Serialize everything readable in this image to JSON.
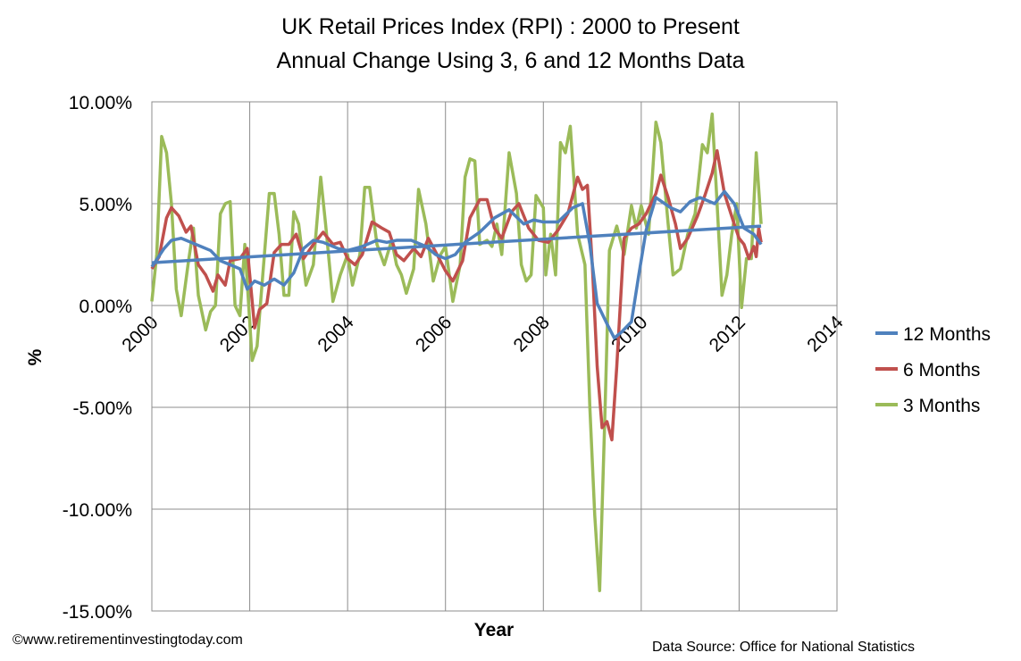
{
  "chart_data": {
    "type": "line",
    "title": "UK Retail Prices Index (RPI) : 2000 to Present",
    "subtitle": "Annual Change Using 3, 6 and 12 Months Data",
    "xlabel": "Year",
    "ylabel": "%",
    "xlim": [
      2000,
      2014
    ],
    "ylim": [
      -15,
      10
    ],
    "x_ticks": [
      "2000",
      "2002",
      "2004",
      "2006",
      "2008",
      "2010",
      "2012",
      "2014"
    ],
    "y_ticks": [
      "10.00%",
      "5.00%",
      "0.00%",
      "-5.00%",
      "-10.00%",
      "-15.00%"
    ],
    "grid": true,
    "legend_position": "right",
    "series": [
      {
        "name": "12 Months",
        "color": "#4F81BD",
        "points": [
          [
            2000,
            1.9
          ],
          [
            2000.25,
            2.8
          ],
          [
            2000.4,
            3.2
          ],
          [
            2000.6,
            3.3
          ],
          [
            2000.8,
            3.1
          ],
          [
            2001,
            2.9
          ],
          [
            2001.2,
            2.7
          ],
          [
            2001.4,
            2.2
          ],
          [
            2001.6,
            2.0
          ],
          [
            2001.8,
            1.8
          ],
          [
            2001.95,
            0.8
          ],
          [
            2002.1,
            1.2
          ],
          [
            2002.3,
            1.0
          ],
          [
            2002.5,
            1.3
          ],
          [
            2002.7,
            1.0
          ],
          [
            2002.9,
            1.6
          ],
          [
            2003.1,
            2.8
          ],
          [
            2003.3,
            3.2
          ],
          [
            2003.5,
            3.1
          ],
          [
            2003.8,
            2.8
          ],
          [
            2004,
            2.7
          ],
          [
            2004.3,
            2.9
          ],
          [
            2004.6,
            3.2
          ],
          [
            2004.8,
            3.1
          ],
          [
            2005,
            3.2
          ],
          [
            2005.3,
            3.2
          ],
          [
            2005.6,
            2.9
          ],
          [
            2005.8,
            2.5
          ],
          [
            2006,
            2.3
          ],
          [
            2006.2,
            2.5
          ],
          [
            2006.4,
            3.1
          ],
          [
            2006.7,
            3.6
          ],
          [
            2007,
            4.3
          ],
          [
            2007.3,
            4.7
          ],
          [
            2007.6,
            4.0
          ],
          [
            2007.8,
            4.2
          ],
          [
            2008,
            4.1
          ],
          [
            2008.3,
            4.1
          ],
          [
            2008.6,
            4.8
          ],
          [
            2008.8,
            5.0
          ],
          [
            2008.95,
            3.0
          ],
          [
            2009.1,
            0.1
          ],
          [
            2009.3,
            -0.9
          ],
          [
            2009.45,
            -1.6
          ],
          [
            2009.6,
            -1.3
          ],
          [
            2009.8,
            -0.8
          ],
          [
            2009.95,
            1.5
          ],
          [
            2010.1,
            3.7
          ],
          [
            2010.3,
            5.3
          ],
          [
            2010.6,
            4.8
          ],
          [
            2010.8,
            4.6
          ],
          [
            2011,
            5.1
          ],
          [
            2011.2,
            5.3
          ],
          [
            2011.5,
            5.0
          ],
          [
            2011.7,
            5.6
          ],
          [
            2011.9,
            5.0
          ],
          [
            2012.1,
            3.8
          ],
          [
            2012.3,
            3.5
          ],
          [
            2012.45,
            3.0
          ]
        ]
      },
      {
        "name": "6 Months",
        "color": "#C0504D",
        "points": [
          [
            2000,
            1.8
          ],
          [
            2000.15,
            2.4
          ],
          [
            2000.3,
            4.3
          ],
          [
            2000.4,
            4.8
          ],
          [
            2000.55,
            4.4
          ],
          [
            2000.7,
            3.6
          ],
          [
            2000.8,
            3.9
          ],
          [
            2000.95,
            2.0
          ],
          [
            2001.1,
            1.5
          ],
          [
            2001.25,
            0.7
          ],
          [
            2001.35,
            1.5
          ],
          [
            2001.5,
            1.0
          ],
          [
            2001.6,
            2.2
          ],
          [
            2001.8,
            2.3
          ],
          [
            2001.95,
            2.8
          ],
          [
            2002.1,
            -1.1
          ],
          [
            2002.2,
            -0.2
          ],
          [
            2002.35,
            0.1
          ],
          [
            2002.5,
            2.6
          ],
          [
            2002.65,
            3.0
          ],
          [
            2002.8,
            3.0
          ],
          [
            2002.95,
            3.5
          ],
          [
            2003.1,
            2.3
          ],
          [
            2003.3,
            3.0
          ],
          [
            2003.5,
            3.6
          ],
          [
            2003.7,
            3.0
          ],
          [
            2003.85,
            3.1
          ],
          [
            2004,
            2.3
          ],
          [
            2004.15,
            2.0
          ],
          [
            2004.3,
            2.5
          ],
          [
            2004.5,
            4.1
          ],
          [
            2004.7,
            3.8
          ],
          [
            2004.85,
            3.6
          ],
          [
            2005,
            2.5
          ],
          [
            2005.15,
            2.2
          ],
          [
            2005.35,
            2.8
          ],
          [
            2005.5,
            2.4
          ],
          [
            2005.65,
            3.3
          ],
          [
            2005.85,
            2.4
          ],
          [
            2006,
            1.7
          ],
          [
            2006.15,
            1.2
          ],
          [
            2006.35,
            2.2
          ],
          [
            2006.5,
            4.3
          ],
          [
            2006.7,
            5.2
          ],
          [
            2006.85,
            5.2
          ],
          [
            2007,
            3.8
          ],
          [
            2007.15,
            3.3
          ],
          [
            2007.35,
            4.6
          ],
          [
            2007.5,
            5.0
          ],
          [
            2007.7,
            3.8
          ],
          [
            2007.9,
            3.2
          ],
          [
            2008.1,
            3.1
          ],
          [
            2008.3,
            3.7
          ],
          [
            2008.5,
            4.5
          ],
          [
            2008.7,
            6.3
          ],
          [
            2008.8,
            5.7
          ],
          [
            2008.9,
            5.9
          ],
          [
            2009,
            2.0
          ],
          [
            2009.1,
            -3.0
          ],
          [
            2009.2,
            -6.0
          ],
          [
            2009.3,
            -5.7
          ],
          [
            2009.4,
            -6.6
          ],
          [
            2009.5,
            -3.0
          ],
          [
            2009.65,
            3.3
          ],
          [
            2009.8,
            3.8
          ],
          [
            2009.95,
            4.0
          ],
          [
            2010.1,
            4.5
          ],
          [
            2010.3,
            5.5
          ],
          [
            2010.4,
            6.4
          ],
          [
            2010.55,
            5.3
          ],
          [
            2010.7,
            4.0
          ],
          [
            2010.8,
            2.8
          ],
          [
            2010.95,
            3.3
          ],
          [
            2011.15,
            4.4
          ],
          [
            2011.3,
            5.4
          ],
          [
            2011.45,
            6.5
          ],
          [
            2011.55,
            7.6
          ],
          [
            2011.7,
            5.5
          ],
          [
            2011.9,
            4.0
          ],
          [
            2012,
            3.3
          ],
          [
            2012.1,
            3.0
          ],
          [
            2012.2,
            2.3
          ],
          [
            2012.3,
            2.9
          ],
          [
            2012.35,
            2.4
          ],
          [
            2012.4,
            3.8
          ],
          [
            2012.45,
            3.1
          ]
        ]
      },
      {
        "name": "3 Months",
        "color": "#9BBB59",
        "points": [
          [
            2000,
            0.2
          ],
          [
            2000.1,
            2.5
          ],
          [
            2000.2,
            8.3
          ],
          [
            2000.3,
            7.5
          ],
          [
            2000.4,
            5.0
          ],
          [
            2000.5,
            0.8
          ],
          [
            2000.6,
            -0.5
          ],
          [
            2000.75,
            2.2
          ],
          [
            2000.85,
            3.8
          ],
          [
            2000.95,
            0.5
          ],
          [
            2001.1,
            -1.2
          ],
          [
            2001.2,
            -0.3
          ],
          [
            2001.3,
            0.0
          ],
          [
            2001.4,
            4.5
          ],
          [
            2001.5,
            5.0
          ],
          [
            2001.6,
            5.1
          ],
          [
            2001.7,
            0.0
          ],
          [
            2001.8,
            -0.5
          ],
          [
            2001.9,
            3.0
          ],
          [
            2002.05,
            -2.7
          ],
          [
            2002.15,
            -2.0
          ],
          [
            2002.3,
            2.5
          ],
          [
            2002.4,
            5.5
          ],
          [
            2002.5,
            5.5
          ],
          [
            2002.6,
            3.5
          ],
          [
            2002.7,
            0.5
          ],
          [
            2002.8,
            0.5
          ],
          [
            2002.9,
            4.6
          ],
          [
            2003,
            4.0
          ],
          [
            2003.15,
            1.0
          ],
          [
            2003.3,
            2.0
          ],
          [
            2003.45,
            6.3
          ],
          [
            2003.55,
            4.0
          ],
          [
            2003.7,
            0.2
          ],
          [
            2003.85,
            1.5
          ],
          [
            2004,
            2.5
          ],
          [
            2004.1,
            1.0
          ],
          [
            2004.25,
            2.5
          ],
          [
            2004.35,
            5.8
          ],
          [
            2004.45,
            5.8
          ],
          [
            2004.6,
            3.0
          ],
          [
            2004.75,
            2.0
          ],
          [
            2004.9,
            3.2
          ],
          [
            2005,
            2.0
          ],
          [
            2005.1,
            1.5
          ],
          [
            2005.2,
            0.6
          ],
          [
            2005.35,
            1.8
          ],
          [
            2005.45,
            5.7
          ],
          [
            2005.6,
            4.0
          ],
          [
            2005.75,
            1.2
          ],
          [
            2005.9,
            2.5
          ],
          [
            2006,
            2.9
          ],
          [
            2006.15,
            0.2
          ],
          [
            2006.3,
            2.0
          ],
          [
            2006.4,
            6.3
          ],
          [
            2006.5,
            7.2
          ],
          [
            2006.6,
            7.1
          ],
          [
            2006.7,
            3.0
          ],
          [
            2006.85,
            3.2
          ],
          [
            2006.95,
            2.9
          ],
          [
            2007.05,
            4.0
          ],
          [
            2007.15,
            2.5
          ],
          [
            2007.3,
            7.5
          ],
          [
            2007.45,
            5.5
          ],
          [
            2007.55,
            2.0
          ],
          [
            2007.65,
            1.2
          ],
          [
            2007.75,
            1.5
          ],
          [
            2007.85,
            5.4
          ],
          [
            2008,
            4.8
          ],
          [
            2008.05,
            1.5
          ],
          [
            2008.15,
            3.5
          ],
          [
            2008.25,
            1.5
          ],
          [
            2008.35,
            8.0
          ],
          [
            2008.45,
            7.5
          ],
          [
            2008.55,
            8.8
          ],
          [
            2008.7,
            3.5
          ],
          [
            2008.85,
            2.0
          ],
          [
            2008.95,
            -5.0
          ],
          [
            2009.05,
            -10.3
          ],
          [
            2009.15,
            -14.0
          ],
          [
            2009.25,
            -6.0
          ],
          [
            2009.35,
            2.7
          ],
          [
            2009.5,
            3.9
          ],
          [
            2009.65,
            2.5
          ],
          [
            2009.8,
            4.9
          ],
          [
            2009.9,
            3.8
          ],
          [
            2010,
            4.9
          ],
          [
            2010.15,
            3.5
          ],
          [
            2010.3,
            9.0
          ],
          [
            2010.4,
            8.0
          ],
          [
            2010.55,
            4.0
          ],
          [
            2010.65,
            1.5
          ],
          [
            2010.8,
            1.8
          ],
          [
            2010.95,
            3.5
          ],
          [
            2011.1,
            4.5
          ],
          [
            2011.25,
            7.9
          ],
          [
            2011.35,
            7.5
          ],
          [
            2011.45,
            9.4
          ],
          [
            2011.55,
            5.0
          ],
          [
            2011.65,
            0.5
          ],
          [
            2011.75,
            1.5
          ],
          [
            2011.85,
            3.5
          ],
          [
            2011.95,
            5.0
          ],
          [
            2012.05,
            -0.1
          ],
          [
            2012.15,
            2.3
          ],
          [
            2012.25,
            2.3
          ],
          [
            2012.35,
            7.5
          ],
          [
            2012.45,
            4.0
          ]
        ]
      }
    ],
    "trendline": {
      "of": "12 Months",
      "type": "linear",
      "color": "#4F81BD",
      "points": [
        [
          2000,
          2.1
        ],
        [
          2012.45,
          3.9
        ]
      ]
    }
  },
  "footer": {
    "copyright": "©www.retirementinvestingtoday.com",
    "source": "Data Source: Office for National Statistics"
  }
}
